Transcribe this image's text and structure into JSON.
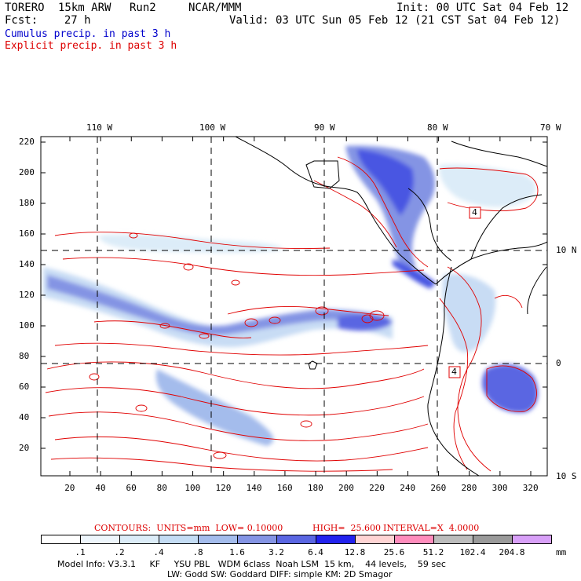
{
  "header": {
    "model": "TORERO",
    "resolution": "15km ARW",
    "run": "Run2",
    "org": "NCAR/MMM",
    "init": "Init: 00 UTC Sat 04 Feb 12",
    "fcst": "Fcst:    27 h",
    "valid": "Valid: 03 UTC Sun 05 Feb 12 (21 CST Sat 04 Feb 12)"
  },
  "legend_lines": {
    "cumulus": "Cumulus precip. in past 3 h",
    "explicit": "Explicit precip. in past 3 h"
  },
  "map": {
    "lon_labels": [
      "110 W",
      "100 W",
      "90 W",
      "80 W",
      "70 W"
    ],
    "lat_labels": [
      "10 N",
      "0",
      "10 S"
    ],
    "y_ticks": [
      "220",
      "200",
      "180",
      "160",
      "140",
      "120",
      "100",
      "80",
      "60",
      "40",
      "20"
    ],
    "x_ticks": [
      "20",
      "40",
      "60",
      "80",
      "100",
      "120",
      "140",
      "160",
      "180",
      "200",
      "220",
      "240",
      "260",
      "280",
      "300",
      "320"
    ],
    "contour_box_labels": [
      "4",
      "4"
    ]
  },
  "contours_line": {
    "label": "CONTOURS:  UNITS=mm  LOW= 0.10000",
    "high": "HIGH=  25.600",
    "interval": "INTERVAL=X  4.0000"
  },
  "colorbar": {
    "unit": "mm",
    "labels": [
      ".1",
      ".2",
      ".4",
      ".8",
      "1.6",
      "3.2",
      "6.4",
      "12.8",
      "25.6",
      "51.2",
      "102.4",
      "204.8"
    ],
    "colors": [
      "#ffffff",
      "#eef6fc",
      "#dcecf8",
      "#c4dcf4",
      "#a4bcec",
      "#8494e4",
      "#5a66e2",
      "#2222ee",
      "#ffd4d4",
      "#ff8cbc",
      "#bcbcbc",
      "#9a9a9a",
      "#d8a0f8"
    ]
  },
  "model_info": {
    "line1": "Model Info: V3.3.1     KF     YSU PBL   WDM 6class  Noah LSM  15 km,    44 levels,    59 sec",
    "line2": "LW: Godd SW: Goddard DIFF: simple KM: 2D Smagor"
  }
}
